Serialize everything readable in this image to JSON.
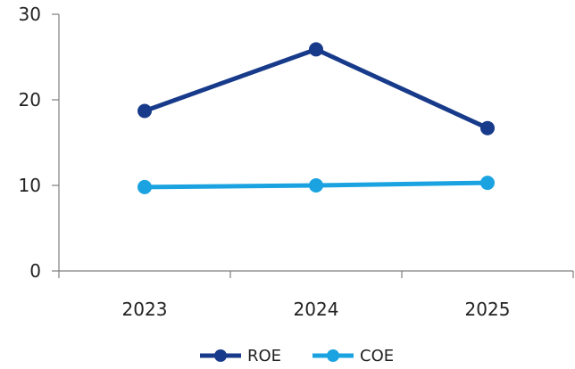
{
  "chart_data": {
    "type": "line",
    "categories": [
      "2023",
      "2024",
      "2025"
    ],
    "series": [
      {
        "name": "ROE",
        "values": [
          18.7,
          25.9,
          16.7
        ],
        "color": "#173b8a"
      },
      {
        "name": "COE",
        "values": [
          9.8,
          10.0,
          10.3
        ],
        "color": "#1aa3e0"
      }
    ],
    "ylim": [
      0,
      30
    ],
    "yticks": [
      "0",
      "10",
      "20",
      "30"
    ],
    "grid": false,
    "legend_position": "bottom-center",
    "title": "",
    "xlabel": "",
    "ylabel": ""
  }
}
